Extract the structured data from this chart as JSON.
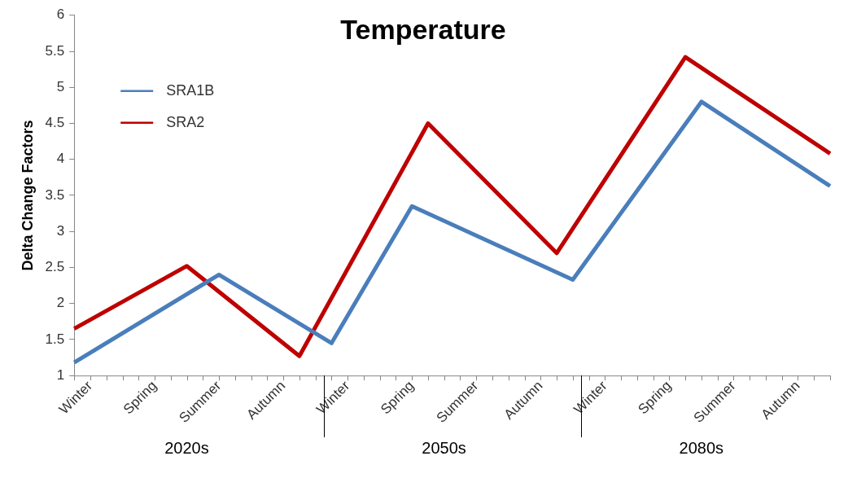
{
  "chart_data": {
    "type": "line",
    "title": "Temperature",
    "ylabel": "Delta Change Factors",
    "categories": [
      null,
      "Winter",
      null,
      null,
      null,
      "Spring",
      null,
      null,
      null,
      "Summer",
      null,
      null,
      null,
      "Autumn",
      null,
      null,
      null,
      "Winter",
      null,
      null,
      null,
      "Spring",
      null,
      null,
      null,
      "Summer",
      null,
      null,
      null,
      "Autumn",
      null,
      null,
      null,
      "Winter",
      null,
      null,
      null,
      "Spring",
      null,
      null,
      null,
      "Summer",
      null,
      null,
      null,
      "Autumn",
      null,
      null
    ],
    "series": [
      {
        "name": "SRA1B",
        "color": "#4a7ebb",
        "values": [
          1.18,
          null,
          null,
          null,
          null,
          null,
          null,
          null,
          null,
          2.4,
          null,
          null,
          null,
          null,
          null,
          null,
          1.45,
          null,
          null,
          null,
          null,
          3.35,
          null,
          null,
          null,
          null,
          null,
          null,
          null,
          null,
          null,
          2.33,
          null,
          null,
          null,
          null,
          null,
          null,
          null,
          4.8,
          null,
          null,
          null,
          null,
          null,
          null,
          null,
          3.63
        ]
      },
      {
        "name": "SRA2",
        "color": "#be0000",
        "values": [
          1.65,
          null,
          null,
          null,
          null,
          null,
          null,
          2.52,
          null,
          null,
          null,
          null,
          null,
          null,
          1.27,
          null,
          null,
          null,
          null,
          null,
          null,
          null,
          4.5,
          null,
          null,
          null,
          null,
          null,
          null,
          null,
          2.7,
          null,
          null,
          null,
          null,
          null,
          null,
          null,
          5.42,
          null,
          null,
          null,
          null,
          null,
          null,
          null,
          null,
          4.08
        ]
      }
    ],
    "annotations": [
      "2020s",
      "2050s",
      "2080s"
    ],
    "ylim": [
      1,
      6
    ],
    "yticks": [
      1,
      1.5,
      2,
      2.5,
      3,
      3.5,
      4,
      4.5,
      5,
      5.5,
      6
    ],
    "grid": false,
    "legend": "top left",
    "marker": "none",
    "line_style": "solid"
  }
}
